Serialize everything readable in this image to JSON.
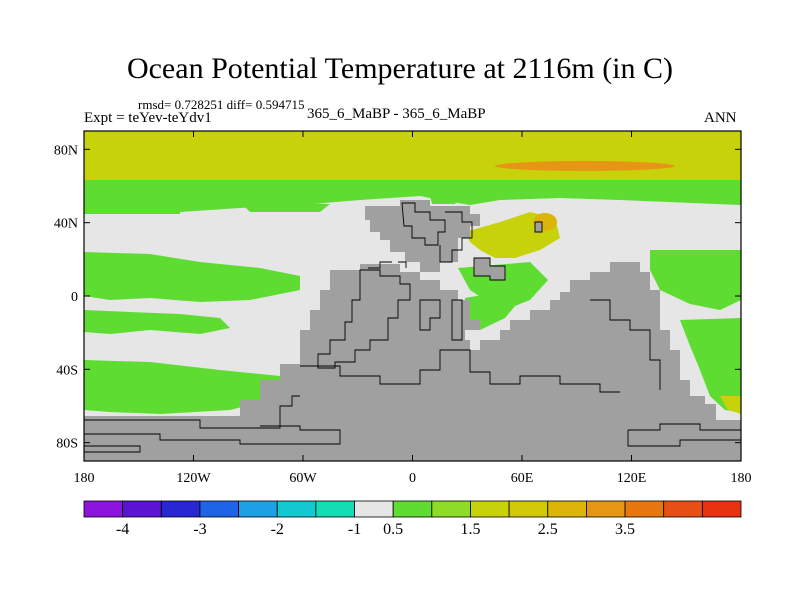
{
  "header": {
    "title": "Ocean Potential Temperature at 2116m (in C)",
    "stats": "rmsd= 0.728251 diff= 0.594715",
    "expt": "Expt = teYev-teYdv1",
    "case": "365_6_MaBP - 365_6_MaBP",
    "season": "ANN"
  },
  "map": {
    "lat_ticks": [
      {
        "value": 80,
        "label": "80N"
      },
      {
        "value": 40,
        "label": "40N"
      },
      {
        "value": 0,
        "label": "0"
      },
      {
        "value": -40,
        "label": "40S"
      },
      {
        "value": -80,
        "label": "80S"
      }
    ],
    "lon_ticks": [
      {
        "value": -180,
        "label": "180"
      },
      {
        "value": -120,
        "label": "120W"
      },
      {
        "value": -60,
        "label": "60W"
      },
      {
        "value": 0,
        "label": "0"
      },
      {
        "value": 60,
        "label": "60E"
      },
      {
        "value": 120,
        "label": "120E"
      },
      {
        "value": 180,
        "label": "180"
      }
    ],
    "colors": {
      "land": "#a0a0a0",
      "near_zero": "#e6e6e6",
      "positive_05": "#5fdc32",
      "positive_15": "#c8d20a",
      "positive_25": "#dcb40a",
      "positive_35": "#e6780f",
      "frame": "#000000"
    }
  },
  "colorbar": {
    "colors": [
      "#8c14dc",
      "#5a14d2",
      "#2828d2",
      "#1e64e6",
      "#1ea0e6",
      "#14c8d2",
      "#14dcb4",
      "#e6e6e6",
      "#5fdc32",
      "#8cdc28",
      "#c8d20a",
      "#d2c80a",
      "#dcb40a",
      "#e69614",
      "#e6780f",
      "#e65014",
      "#e6320f"
    ],
    "labels": [
      {
        "boundary": 1,
        "text": "-4"
      },
      {
        "boundary": 3,
        "text": "-3"
      },
      {
        "boundary": 5,
        "text": "-2"
      },
      {
        "boundary": 7,
        "text": "-1"
      },
      {
        "boundary": 8,
        "text": "0.5"
      },
      {
        "boundary": 10,
        "text": "1.5"
      },
      {
        "boundary": 12,
        "text": "2.5"
      },
      {
        "boundary": 14,
        "text": "3.5"
      }
    ]
  }
}
